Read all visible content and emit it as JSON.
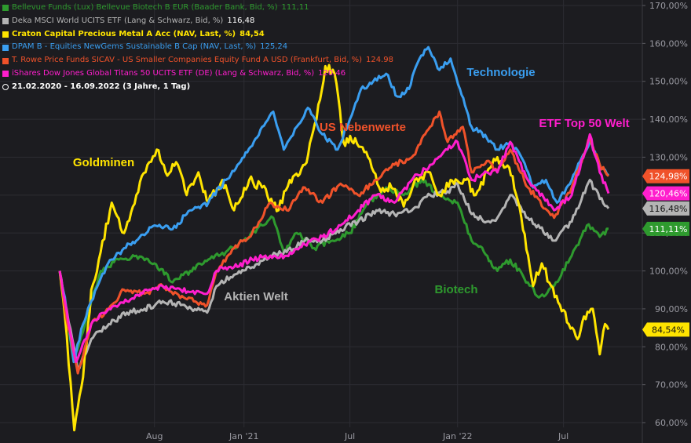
{
  "legend": [
    {
      "text": "Bellevue Funds (Lux) Bellevue Biotech B EUR (Baader Bank, Bid, %)",
      "value": "111,11",
      "color": "#2e9a2e"
    },
    {
      "text": "Deka MSCI World UCITS ETF (Lang & Schwarz, Bid, %)",
      "value": "116,48",
      "color": "#b4b4b4"
    },
    {
      "text": "Craton Capital Precious Metal A Acc (NAV, Last, %)",
      "value": "84,54",
      "color": "#ffe400",
      "bold": true
    },
    {
      "text": "DPAM B - Equities NewGems Sustainable B Cap (NAV, Last, %)",
      "value": "125,24",
      "color": "#3a9ef0"
    },
    {
      "text": "T. Rowe Price Funds SICAV - US Smaller Companies Equity Fund A USD (Frankfurt, Bid, %)",
      "value": "124.98",
      "color": "#f0522a"
    },
    {
      "text": "iShares Dow Jones Global Titans 50 UCITS ETF (DE) (Lang & Schwarz, Bid, %)",
      "value": "120,46",
      "color": "#ff1ecd"
    }
  ],
  "period": "21.02.2020 - 16.09.2022   (3 Jahre, 1 Tag)",
  "chart_data": {
    "type": "line",
    "x_start": "2020-02-21",
    "x_end": "2022-09-16",
    "x_ticks": [
      {
        "date": "2020-08-01",
        "label": "Aug"
      },
      {
        "date": "2021-01-01",
        "label": "Jan '21"
      },
      {
        "date": "2021-07-01",
        "label": "Jul"
      },
      {
        "date": "2022-01-01",
        "label": "Jan '22"
      },
      {
        "date": "2022-07-01",
        "label": "Jul"
      }
    ],
    "y_axis": {
      "min": 60,
      "max": 170,
      "step": 10,
      "unit": "%",
      "tick_labels": [
        "60,00%",
        "70,00%",
        "80,00%",
        "90,00%",
        "100,00%",
        "110,00%",
        "120,00%",
        "130,00%",
        "140,00%",
        "150,00%",
        "160,00%",
        "170,00%"
      ]
    },
    "grid": true,
    "series": [
      {
        "name": "Bellevue Funds (Lux) Bellevue Biotech B EUR",
        "color": "#2e9a2e",
        "last_label": "111,11%",
        "points": [
          [
            "2020-02-21",
            100
          ],
          [
            "2020-03-01",
            92
          ],
          [
            "2020-03-16",
            76
          ],
          [
            "2020-04-01",
            84
          ],
          [
            "2020-04-15",
            92
          ],
          [
            "2020-05-01",
            100
          ],
          [
            "2020-06-01",
            103
          ],
          [
            "2020-07-01",
            104
          ],
          [
            "2020-08-01",
            102
          ],
          [
            "2020-09-01",
            97
          ],
          [
            "2020-10-01",
            100
          ],
          [
            "2020-11-01",
            103
          ],
          [
            "2020-12-01",
            105
          ],
          [
            "2021-01-01",
            108
          ],
          [
            "2021-02-01",
            112
          ],
          [
            "2021-02-20",
            114
          ],
          [
            "2021-03-10",
            105
          ],
          [
            "2021-04-01",
            110
          ],
          [
            "2021-05-01",
            106
          ],
          [
            "2021-06-01",
            108
          ],
          [
            "2021-07-01",
            110
          ],
          [
            "2021-08-01",
            118
          ],
          [
            "2021-09-01",
            122
          ],
          [
            "2021-10-01",
            120
          ],
          [
            "2021-11-01",
            124
          ],
          [
            "2021-12-01",
            120
          ],
          [
            "2022-01-01",
            118
          ],
          [
            "2022-01-25",
            108
          ],
          [
            "2022-02-15",
            105
          ],
          [
            "2022-03-10",
            100
          ],
          [
            "2022-04-01",
            103
          ],
          [
            "2022-05-01",
            97
          ],
          [
            "2022-05-20",
            93
          ],
          [
            "2022-06-15",
            96
          ],
          [
            "2022-07-15",
            104
          ],
          [
            "2022-08-10",
            112
          ],
          [
            "2022-09-01",
            109
          ],
          [
            "2022-09-16",
            111.11
          ]
        ]
      },
      {
        "name": "Deka MSCI World UCITS ETF",
        "color": "#b4b4b4",
        "last_label": "116,48%",
        "points": [
          [
            "2020-02-21",
            100
          ],
          [
            "2020-03-01",
            92
          ],
          [
            "2020-03-23",
            74
          ],
          [
            "2020-04-15",
            82
          ],
          [
            "2020-05-15",
            86
          ],
          [
            "2020-06-15",
            89
          ],
          [
            "2020-07-15",
            90
          ],
          [
            "2020-08-15",
            92
          ],
          [
            "2020-09-15",
            91
          ],
          [
            "2020-10-30",
            89
          ],
          [
            "2020-11-15",
            96
          ],
          [
            "2020-12-15",
            99
          ],
          [
            "2021-01-15",
            101
          ],
          [
            "2021-02-15",
            104
          ],
          [
            "2021-03-15",
            105
          ],
          [
            "2021-04-15",
            108
          ],
          [
            "2021-05-15",
            108
          ],
          [
            "2021-06-15",
            111
          ],
          [
            "2021-07-15",
            113
          ],
          [
            "2021-08-15",
            116
          ],
          [
            "2021-09-15",
            115
          ],
          [
            "2021-10-15",
            116
          ],
          [
            "2021-11-15",
            120
          ],
          [
            "2021-12-15",
            121
          ],
          [
            "2022-01-01",
            123
          ],
          [
            "2022-01-25",
            115
          ],
          [
            "2022-02-20",
            113
          ],
          [
            "2022-03-10",
            114
          ],
          [
            "2022-04-01",
            120
          ],
          [
            "2022-05-01",
            114
          ],
          [
            "2022-06-15",
            108
          ],
          [
            "2022-07-15",
            113
          ],
          [
            "2022-08-15",
            124
          ],
          [
            "2022-09-01",
            119
          ],
          [
            "2022-09-16",
            116.48
          ]
        ]
      },
      {
        "name": "Craton Capital Precious Metal A Acc",
        "color": "#ffe400",
        "last_label": "84,54%",
        "points": [
          [
            "2020-02-21",
            100
          ],
          [
            "2020-03-01",
            88
          ],
          [
            "2020-03-17",
            58
          ],
          [
            "2020-04-01",
            72
          ],
          [
            "2020-04-15",
            95
          ],
          [
            "2020-05-01",
            105
          ],
          [
            "2020-05-20",
            118
          ],
          [
            "2020-06-10",
            110
          ],
          [
            "2020-07-01",
            120
          ],
          [
            "2020-07-20",
            128
          ],
          [
            "2020-08-05",
            132
          ],
          [
            "2020-08-20",
            126
          ],
          [
            "2020-09-10",
            128
          ],
          [
            "2020-09-25",
            120
          ],
          [
            "2020-10-15",
            126
          ],
          [
            "2020-11-01",
            118
          ],
          [
            "2020-11-25",
            124
          ],
          [
            "2020-12-15",
            116
          ],
          [
            "2021-01-10",
            124
          ],
          [
            "2021-02-01",
            122
          ],
          [
            "2021-03-01",
            116
          ],
          [
            "2021-03-20",
            124
          ],
          [
            "2021-04-15",
            128
          ],
          [
            "2021-05-05",
            140
          ],
          [
            "2021-05-20",
            154
          ],
          [
            "2021-06-05",
            152
          ],
          [
            "2021-06-20",
            134
          ],
          [
            "2021-07-10",
            135
          ],
          [
            "2021-08-01",
            130
          ],
          [
            "2021-08-20",
            122
          ],
          [
            "2021-09-10",
            122
          ],
          [
            "2021-10-01",
            117
          ],
          [
            "2021-10-20",
            124
          ],
          [
            "2021-11-15",
            126
          ],
          [
            "2021-12-01",
            120
          ],
          [
            "2021-12-20",
            124
          ],
          [
            "2022-01-15",
            124
          ],
          [
            "2022-02-01",
            120
          ],
          [
            "2022-02-20",
            126
          ],
          [
            "2022-03-10",
            130
          ],
          [
            "2022-04-05",
            125
          ],
          [
            "2022-04-20",
            114
          ],
          [
            "2022-05-10",
            96
          ],
          [
            "2022-05-25",
            102
          ],
          [
            "2022-06-10",
            96
          ],
          [
            "2022-06-25",
            91
          ],
          [
            "2022-07-10",
            86
          ],
          [
            "2022-07-25",
            82
          ],
          [
            "2022-08-05",
            88
          ],
          [
            "2022-08-20",
            90
          ],
          [
            "2022-09-01",
            78
          ],
          [
            "2022-09-10",
            86
          ],
          [
            "2022-09-16",
            84.54
          ]
        ]
      },
      {
        "name": "DPAM B - Equities NewGems Sustainable B Cap",
        "color": "#3a9ef0",
        "last_label": "",
        "points": [
          [
            "2020-02-21",
            100
          ],
          [
            "2020-03-01",
            93
          ],
          [
            "2020-03-16",
            76
          ],
          [
            "2020-04-01",
            86
          ],
          [
            "2020-04-15",
            92
          ],
          [
            "2020-05-01",
            98
          ],
          [
            "2020-05-20",
            103
          ],
          [
            "2020-06-10",
            106
          ],
          [
            "2020-07-01",
            108
          ],
          [
            "2020-08-01",
            112
          ],
          [
            "2020-09-01",
            111
          ],
          [
            "2020-10-01",
            116
          ],
          [
            "2020-11-01",
            118
          ],
          [
            "2020-12-01",
            124
          ],
          [
            "2021-01-01",
            130
          ],
          [
            "2021-02-01",
            138
          ],
          [
            "2021-02-20",
            142
          ],
          [
            "2021-03-10",
            132
          ],
          [
            "2021-04-01",
            138
          ],
          [
            "2021-04-20",
            143
          ],
          [
            "2021-05-15",
            136
          ],
          [
            "2021-06-10",
            132
          ],
          [
            "2021-07-01",
            140
          ],
          [
            "2021-07-20",
            148
          ],
          [
            "2021-08-10",
            150
          ],
          [
            "2021-09-01",
            152
          ],
          [
            "2021-09-20",
            146
          ],
          [
            "2021-10-10",
            148
          ],
          [
            "2021-10-25",
            155
          ],
          [
            "2021-11-12",
            159
          ],
          [
            "2021-12-01",
            153
          ],
          [
            "2021-12-20",
            156
          ],
          [
            "2022-01-05",
            148
          ],
          [
            "2022-01-25",
            138
          ],
          [
            "2022-02-20",
            135
          ],
          [
            "2022-03-10",
            132
          ],
          [
            "2022-04-01",
            134
          ],
          [
            "2022-04-20",
            130
          ],
          [
            "2022-05-10",
            122
          ],
          [
            "2022-06-01",
            124
          ],
          [
            "2022-06-20",
            118
          ],
          [
            "2022-07-15",
            124
          ],
          [
            "2022-08-15",
            134
          ],
          [
            "2022-09-01",
            128
          ],
          [
            "2022-09-16",
            125.24
          ]
        ]
      },
      {
        "name": "T. Rowe Price Funds SICAV - US Smaller Companies Equity Fund A USD",
        "color": "#f0522a",
        "last_label": "124,98%",
        "points": [
          [
            "2020-02-21",
            100
          ],
          [
            "2020-03-01",
            90
          ],
          [
            "2020-03-23",
            73
          ],
          [
            "2020-04-15",
            86
          ],
          [
            "2020-05-15",
            90
          ],
          [
            "2020-06-10",
            95
          ],
          [
            "2020-07-15",
            94
          ],
          [
            "2020-08-15",
            96
          ],
          [
            "2020-09-20",
            93
          ],
          [
            "2020-10-30",
            91
          ],
          [
            "2020-11-15",
            100
          ],
          [
            "2020-12-15",
            106
          ],
          [
            "2021-01-15",
            110
          ],
          [
            "2021-02-15",
            118
          ],
          [
            "2021-03-15",
            116
          ],
          [
            "2021-04-15",
            122
          ],
          [
            "2021-05-15",
            118
          ],
          [
            "2021-06-15",
            123
          ],
          [
            "2021-07-15",
            120
          ],
          [
            "2021-08-15",
            124
          ],
          [
            "2021-09-15",
            128
          ],
          [
            "2021-10-15",
            130
          ],
          [
            "2021-11-15",
            138
          ],
          [
            "2021-12-01",
            142
          ],
          [
            "2021-12-15",
            134
          ],
          [
            "2022-01-10",
            138
          ],
          [
            "2022-01-25",
            126
          ],
          [
            "2022-02-20",
            129
          ],
          [
            "2022-03-10",
            126
          ],
          [
            "2022-04-01",
            132
          ],
          [
            "2022-05-01",
            122
          ],
          [
            "2022-06-15",
            114
          ],
          [
            "2022-07-15",
            122
          ],
          [
            "2022-08-15",
            135
          ],
          [
            "2022-09-01",
            128
          ],
          [
            "2022-09-16",
            124.98
          ]
        ]
      },
      {
        "name": "iShares Dow Jones Global Titans 50 UCITS ETF (DE)",
        "color": "#ff1ecd",
        "last_label": "120,46%",
        "points": [
          [
            "2020-02-21",
            100
          ],
          [
            "2020-03-01",
            92
          ],
          [
            "2020-03-20",
            76
          ],
          [
            "2020-04-15",
            86
          ],
          [
            "2020-05-15",
            90
          ],
          [
            "2020-06-15",
            92
          ],
          [
            "2020-07-15",
            95
          ],
          [
            "2020-08-15",
            96
          ],
          [
            "2020-09-15",
            95
          ],
          [
            "2020-10-30",
            94
          ],
          [
            "2020-11-15",
            100
          ],
          [
            "2020-12-15",
            101
          ],
          [
            "2021-01-15",
            103
          ],
          [
            "2021-02-15",
            104
          ],
          [
            "2021-03-15",
            104
          ],
          [
            "2021-04-15",
            107
          ],
          [
            "2021-05-15",
            109
          ],
          [
            "2021-06-15",
            112
          ],
          [
            "2021-07-15",
            116
          ],
          [
            "2021-08-15",
            120
          ],
          [
            "2021-09-15",
            118
          ],
          [
            "2021-10-15",
            124
          ],
          [
            "2021-11-15",
            128
          ],
          [
            "2021-12-15",
            132
          ],
          [
            "2022-01-01",
            134
          ],
          [
            "2022-01-25",
            124
          ],
          [
            "2022-02-20",
            126
          ],
          [
            "2022-03-10",
            126
          ],
          [
            "2022-04-01",
            134
          ],
          [
            "2022-05-01",
            124
          ],
          [
            "2022-06-15",
            116
          ],
          [
            "2022-07-15",
            120
          ],
          [
            "2022-08-15",
            136
          ],
          [
            "2022-09-01",
            126
          ],
          [
            "2022-09-16",
            120.46
          ]
        ]
      }
    ],
    "annotations": [
      {
        "text": "Goldminen",
        "color": "#ffe400"
      },
      {
        "text": "Technologie",
        "color": "#3a9ef0"
      },
      {
        "text": "US Nebenwerte",
        "color": "#f0522a"
      },
      {
        "text": "ETF Top 50 Welt",
        "color": "#ff1ecd"
      },
      {
        "text": "Aktien Welt",
        "color": "#b4b4b4"
      },
      {
        "text": "Biotech",
        "color": "#2e9a2e"
      }
    ]
  }
}
